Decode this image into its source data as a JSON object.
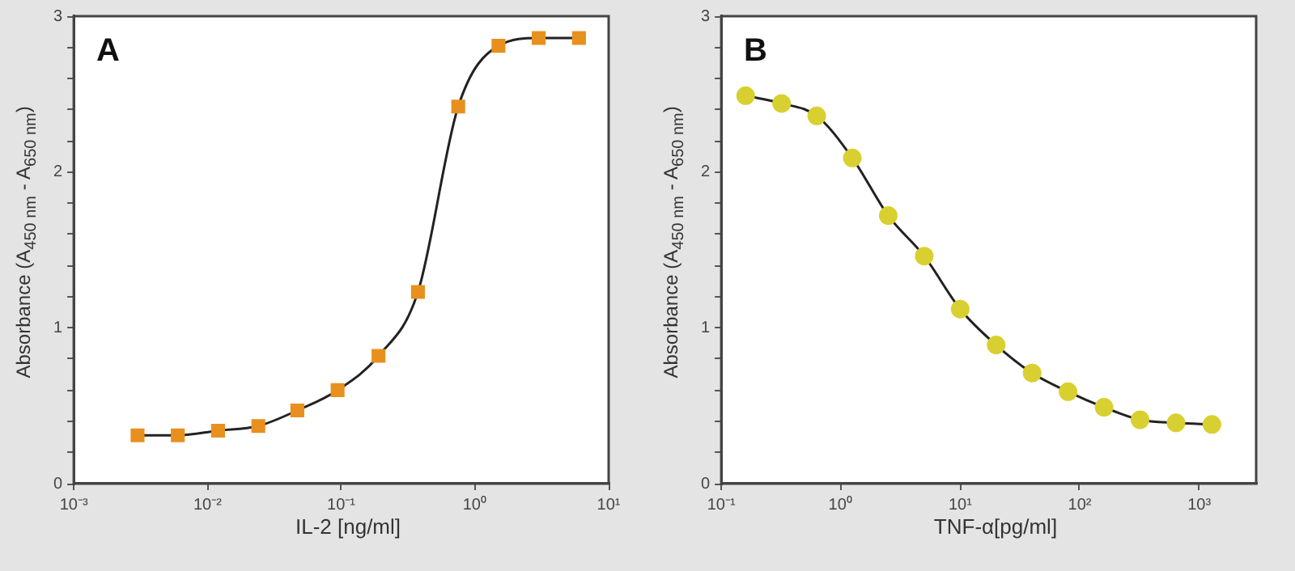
{
  "chart_data": [
    {
      "type": "line",
      "title": "A",
      "xlabel": "IL-2 [ng/ml]",
      "ylabel": "Absorbance (A$_{450 nm}$ - A$_{650 nm}$)",
      "log": "x",
      "marker": "square",
      "grid": false,
      "legend": false,
      "xlim": [
        0.001,
        10
      ],
      "xticks": [
        {
          "value": 0.001,
          "label": "10⁻³"
        },
        {
          "value": 0.01,
          "label": "10⁻²"
        },
        {
          "value": 0.1,
          "label": "10⁻¹"
        },
        {
          "value": 1,
          "label": "10⁰"
        },
        {
          "value": 10,
          "label": "10¹"
        }
      ],
      "ylim": [
        0,
        3
      ],
      "yticks": [
        0,
        {
          "value": 0.2,
          "label": null
        },
        {
          "value": 0.4,
          "label": null
        },
        {
          "value": 0.6,
          "label": null
        },
        {
          "value": 0.8,
          "label": null
        },
        1,
        {
          "value": 1.2,
          "label": null
        },
        {
          "value": 1.4,
          "label": null
        },
        {
          "value": 1.6,
          "label": null
        },
        {
          "value": 1.8,
          "label": null
        },
        2,
        {
          "value": 2.2,
          "label": null
        },
        {
          "value": 2.4,
          "label": null
        },
        {
          "value": 2.6,
          "label": null
        },
        {
          "value": 2.8,
          "label": null
        },
        3
      ],
      "x": [
        0.003,
        0.006,
        0.012,
        0.024,
        0.047,
        0.094,
        0.19,
        0.375,
        0.75,
        1.5,
        3,
        6
      ],
      "series": [
        {
          "color": "#e8901e",
          "values": [
            0.31,
            0.31,
            0.34,
            0.37,
            0.47,
            0.6,
            0.82,
            1.23,
            2.42,
            2.81,
            2.86,
            2.86
          ]
        }
      ]
    },
    {
      "type": "line",
      "title": "B",
      "xlabel": "TNF-α[pg/ml]",
      "ylabel": "Absorbance (A$_{450 nm}$ - A$_{650 nm}$)",
      "log": "x",
      "marker": "circle",
      "grid": false,
      "legend": false,
      "xlim": [
        0.1,
        3000
      ],
      "xticks": [
        {
          "value": 0.1,
          "label": "10⁻¹"
        },
        {
          "value": 1,
          "label": "10⁰"
        },
        {
          "value": 10,
          "label": "10¹"
        },
        {
          "value": 100,
          "label": "10²"
        },
        {
          "value": 1000,
          "label": "10³"
        }
      ],
      "ylim": [
        0,
        3
      ],
      "yticks": [
        0,
        {
          "value": 0.2,
          "label": null
        },
        {
          "value": 0.4,
          "label": null
        },
        {
          "value": 0.6,
          "label": null
        },
        {
          "value": 0.8,
          "label": null
        },
        1,
        {
          "value": 1.2,
          "label": null
        },
        {
          "value": 1.4,
          "label": null
        },
        {
          "value": 1.6,
          "label": null
        },
        {
          "value": 1.8,
          "label": null
        },
        2,
        {
          "value": 2.2,
          "label": null
        },
        {
          "value": 2.4,
          "label": null
        },
        {
          "value": 2.6,
          "label": null
        },
        {
          "value": 2.8,
          "label": null
        },
        3
      ],
      "x": [
        0.16,
        0.32,
        0.63,
        1.25,
        2.5,
        5,
        10,
        20,
        40,
        80,
        160,
        320,
        640,
        1280
      ],
      "series": [
        {
          "color": "#d8d030",
          "values": [
            2.49,
            2.44,
            2.36,
            2.09,
            1.72,
            1.46,
            1.12,
            0.89,
            0.71,
            0.59,
            0.49,
            0.41,
            0.39,
            0.38
          ]
        }
      ]
    }
  ]
}
